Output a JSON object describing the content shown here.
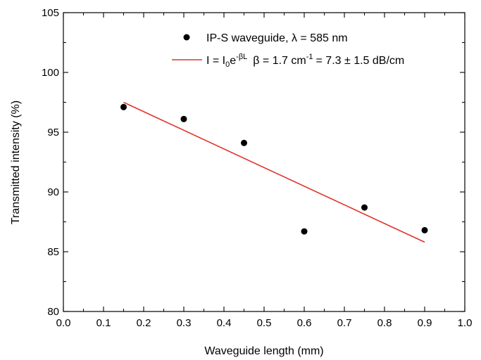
{
  "chart_data": {
    "type": "scatter",
    "xlabel": "Waveguide length (mm)",
    "ylabel": "Transmitted intensity (%)",
    "xlim": [
      0.0,
      1.0
    ],
    "ylim": [
      80,
      105
    ],
    "x_ticks": [
      "0.0",
      "0.1",
      "0.2",
      "0.3",
      "0.4",
      "0.5",
      "0.6",
      "0.7",
      "0.8",
      "0.9",
      "1.0"
    ],
    "y_ticks": [
      "80",
      "85",
      "90",
      "95",
      "100",
      "105"
    ],
    "grid": false,
    "legend_position": "top-right",
    "series": [
      {
        "name": "IP-S waveguide, λ = 585 nm",
        "kind": "scatter",
        "color": "#000000",
        "x": [
          0.15,
          0.3,
          0.45,
          0.6,
          0.75,
          0.9
        ],
        "y": [
          97.1,
          96.1,
          94.1,
          86.7,
          88.7,
          86.8
        ]
      },
      {
        "name_parts": {
          "i_eq": "I = I",
          "i_sub": "0",
          "e": "e",
          "e_sup": "-βL",
          "beta_eq": "β = 1.7 cm",
          "cm_sup": "-1",
          "rest": "= 7.3 ± 1.5 dB/cm"
        },
        "kind": "line",
        "color": "#e0332b",
        "x": [
          0.15,
          0.9
        ],
        "y": [
          97.5,
          85.8
        ]
      }
    ]
  }
}
